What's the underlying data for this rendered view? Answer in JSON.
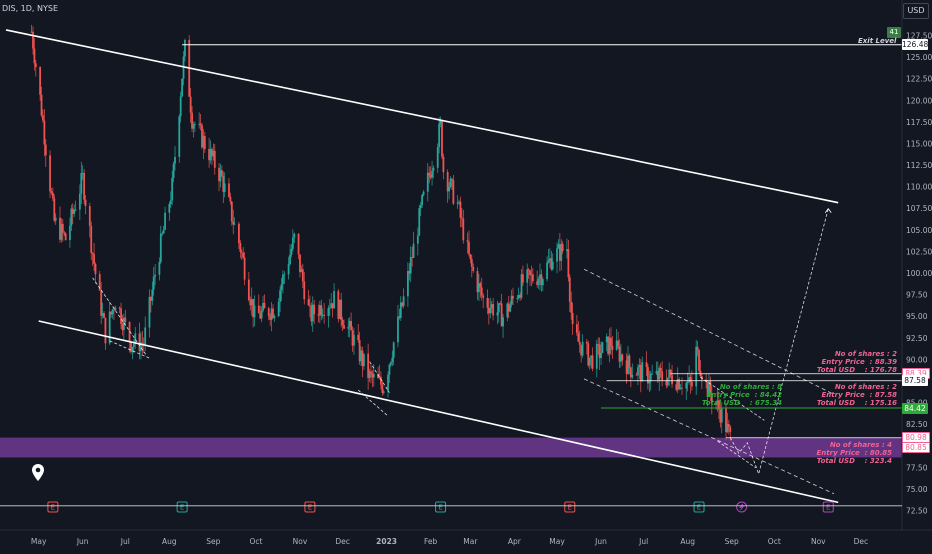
{
  "header": {
    "symbol": "DIS, 1D, NYSE",
    "currency_button": "USD"
  },
  "colors": {
    "background": "#131722",
    "up": "#26a69a",
    "down": "#ef5350",
    "line": "#ffffff",
    "zone": "#7b3fa0",
    "pink": "#f06292",
    "green": "#2eaa3a"
  },
  "exit_level": {
    "label": "Exit Level",
    "badge": "41",
    "price": "126.48"
  },
  "price_tags": [
    {
      "text": "126.48",
      "style": "white"
    },
    {
      "text": "88.39",
      "style": "pink"
    },
    {
      "text": "87.58",
      "style": "white"
    },
    {
      "text": "84.42",
      "style": "green"
    },
    {
      "text": "80.98",
      "style": "pink"
    },
    {
      "text": "80.85",
      "style": "pink"
    }
  ],
  "orders": [
    {
      "shares": "No of shares : 2",
      "entry": "Entry Price  : 88.39",
      "total": "Total USD    : 176.78",
      "color": "pink"
    },
    {
      "shares": "No of shares : 2",
      "entry": "Entry Price  : 87.58",
      "total": "Total USD    : 175.16",
      "color": "pink"
    },
    {
      "shares": "No of shares : 8",
      "entry": "Entry Price  : 84.42",
      "total": "Total USD    : 675.34",
      "color": "green"
    },
    {
      "shares": "No of shares : 4",
      "entry": "Entry Price  : 80.85",
      "total": "Total USD    : 323.4",
      "color": "pink"
    }
  ],
  "chart_data": {
    "type": "candlestick",
    "title": "DIS, 1D, NYSE",
    "y_axis": {
      "ticks": [
        "127.50",
        "125.00",
        "122.50",
        "120.00",
        "117.50",
        "115.00",
        "112.50",
        "110.00",
        "107.50",
        "105.00",
        "102.50",
        "100.00",
        "97.50",
        "95.00",
        "92.50",
        "90.00",
        "87.50",
        "85.00",
        "82.50",
        "80.00",
        "77.50",
        "75.00",
        "72.50"
      ],
      "ylim": [
        72.5,
        128.5
      ]
    },
    "x_axis": {
      "ticks": [
        "May",
        "Jun",
        "Jul",
        "Aug",
        "Sep",
        "Oct",
        "Nov",
        "Dec",
        "2023",
        "Feb",
        "Mar",
        "Apr",
        "May",
        "Jun",
        "Jul",
        "Aug",
        "Sep",
        "Oct",
        "Nov",
        "Dec"
      ]
    },
    "price_path": [
      [
        "2022-04-26",
        128
      ],
      [
        "2022-05-03",
        119
      ],
      [
        "2022-05-12",
        106
      ],
      [
        "2022-05-20",
        104
      ],
      [
        "2022-06-01",
        111
      ],
      [
        "2022-06-10",
        100
      ],
      [
        "2022-06-17",
        93
      ],
      [
        "2022-06-24",
        97
      ],
      [
        "2022-07-05",
        92
      ],
      [
        "2022-07-14",
        92
      ],
      [
        "2022-07-22",
        100
      ],
      [
        "2022-08-03",
        110
      ],
      [
        "2022-08-10",
        123
      ],
      [
        "2022-08-12",
        126
      ],
      [
        "2022-08-17",
        118
      ],
      [
        "2022-08-26",
        115
      ],
      [
        "2022-09-07",
        111
      ],
      [
        "2022-09-20",
        103
      ],
      [
        "2022-09-30",
        95
      ],
      [
        "2022-10-14",
        96
      ],
      [
        "2022-10-28",
        104
      ],
      [
        "2022-11-08",
        95
      ],
      [
        "2022-11-14",
        96
      ],
      [
        "2022-11-25",
        97
      ],
      [
        "2022-12-07",
        93
      ],
      [
        "2022-12-20",
        88
      ],
      [
        "2022-12-30",
        87
      ],
      [
        "2023-01-13",
        97
      ],
      [
        "2023-01-26",
        108
      ],
      [
        "2023-02-08",
        117
      ],
      [
        "2023-02-10",
        112
      ],
      [
        "2023-02-20",
        108
      ],
      [
        "2023-03-01",
        101
      ],
      [
        "2023-03-10",
        97
      ],
      [
        "2023-03-24",
        95
      ],
      [
        "2023-04-07",
        99
      ],
      [
        "2023-04-21",
        100
      ],
      [
        "2023-04-28",
        102
      ],
      [
        "2023-05-08",
        103
      ],
      [
        "2023-05-12",
        93
      ],
      [
        "2023-05-25",
        90
      ],
      [
        "2023-06-08",
        92
      ],
      [
        "2023-06-22",
        89
      ],
      [
        "2023-07-07",
        88
      ],
      [
        "2023-07-21",
        88
      ],
      [
        "2023-08-04",
        87
      ],
      [
        "2023-08-07",
        91
      ],
      [
        "2023-08-14",
        87
      ],
      [
        "2023-08-24",
        84
      ],
      [
        "2023-08-31",
        81
      ]
    ],
    "channels": [
      {
        "name": "upper trendline",
        "points": [
          [
            "2022-04-08",
            128.2
          ],
          [
            "2023-11-15",
            108.2
          ]
        ]
      },
      {
        "name": "lower trendline",
        "points": [
          [
            "2022-05-01",
            94.5
          ],
          [
            "2023-11-15",
            73.5
          ]
        ]
      },
      {
        "name": "minor channel upper",
        "points": [
          [
            "2023-05-20",
            100.5
          ],
          [
            "2023-11-12",
            86.0
          ]
        ]
      },
      {
        "name": "minor channel lower",
        "points": [
          [
            "2023-05-20",
            87.8
          ],
          [
            "2023-11-12",
            74.5
          ]
        ]
      }
    ],
    "horizontal_levels": [
      126.48,
      88.39,
      87.58,
      84.42,
      80.98,
      80.85
    ],
    "support_zone": [
      78.7,
      81.0
    ],
    "earnings_markers": [
      "2022-05-11",
      "2022-08-10",
      "2022-11-08",
      "2023-02-08",
      "2023-05-10",
      "2023-08-09",
      "2023-11-08"
    ]
  }
}
